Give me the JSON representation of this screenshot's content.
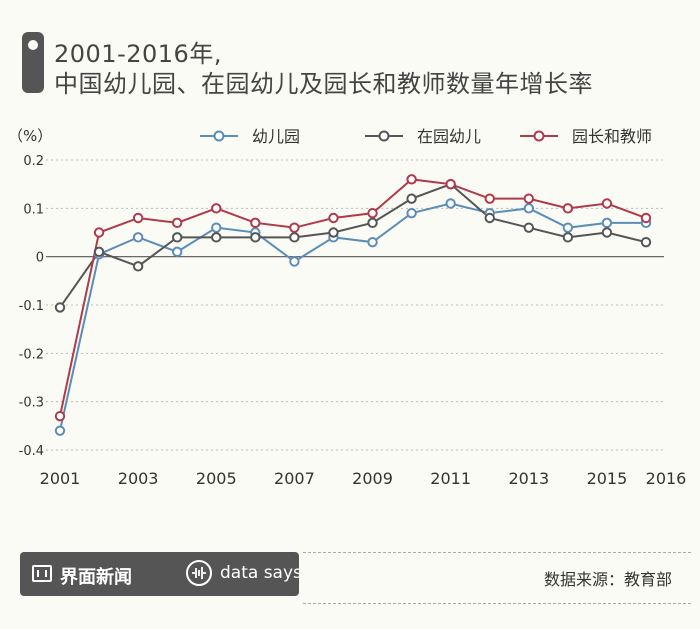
{
  "title": {
    "line1": "2001-2016年,",
    "line2": "中国幼儿园、在园幼儿及园长和教师数量年增长率"
  },
  "source": "数据来源：教育部",
  "brand": {
    "name": "界面新闻",
    "tagline": "data says"
  },
  "colors": {
    "background": "#fbfbf5",
    "series": [
      "#5b8db8",
      "#555555",
      "#b0394a"
    ]
  },
  "chart_data": {
    "type": "line",
    "ylabel": "（%）",
    "ylim": [
      -0.4,
      0.2
    ],
    "yticks": [
      0.2,
      0.1,
      0,
      -0.1,
      -0.2,
      -0.3,
      -0.4
    ],
    "ytick_labels": [
      "0.2",
      "0.1",
      "0",
      "-0.1",
      "-0.2",
      "-0.3",
      "-0.4"
    ],
    "xlim": [
      2001,
      2016
    ],
    "xticks": [
      2001,
      2003,
      2005,
      2007,
      2009,
      2011,
      2013,
      2015,
      2016
    ],
    "x": [
      2001,
      2002,
      2003,
      2004,
      2005,
      2006,
      2007,
      2008,
      2009,
      2010,
      2011,
      2012,
      2013,
      2014,
      2015,
      2016
    ],
    "grid": "horizontal",
    "legend_position": "top",
    "series": [
      {
        "name": "幼儿园",
        "values": [
          -0.36,
          0.005,
          0.04,
          0.01,
          0.06,
          0.05,
          -0.01,
          0.04,
          0.03,
          0.09,
          0.11,
          0.09,
          0.1,
          0.06,
          0.07,
          0.07
        ]
      },
      {
        "name": "在园幼儿",
        "values": [
          -0.105,
          0.01,
          -0.02,
          0.04,
          0.04,
          0.04,
          0.04,
          0.05,
          0.07,
          0.12,
          0.15,
          0.08,
          0.06,
          0.04,
          0.05,
          0.03
        ]
      },
      {
        "name": "园长和教师",
        "values": [
          -0.33,
          0.05,
          0.08,
          0.07,
          0.1,
          0.07,
          0.06,
          0.08,
          0.09,
          0.16,
          0.15,
          0.12,
          0.12,
          0.1,
          0.11,
          0.08
        ]
      }
    ]
  }
}
